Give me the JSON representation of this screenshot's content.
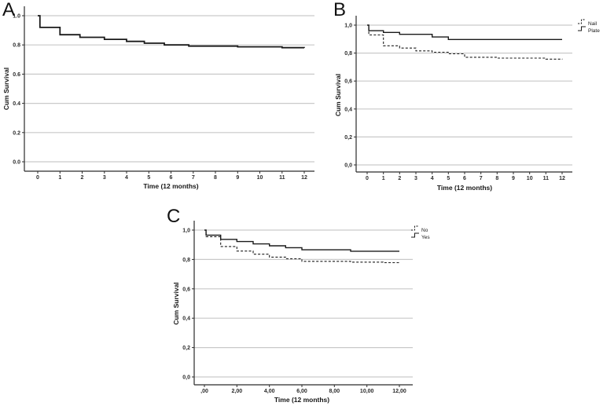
{
  "figure": {
    "background": "#ffffff"
  },
  "colors": {
    "curve": "#1a1a1a",
    "grid": "#c9c9c9",
    "axis": "#2b2b2b"
  },
  "chart_data": [
    {
      "type": "line",
      "subtype": "kaplan-meier-step",
      "panel_label": "A",
      "title": "",
      "xlabel": "Time (12 months)",
      "ylabel": "Cum Survival",
      "xlim": [
        0,
        12
      ],
      "ylim": [
        0,
        1
      ],
      "grid": true,
      "legend_position": null,
      "x_tick_values": [
        0,
        1,
        2,
        3,
        4,
        5,
        6,
        7,
        8,
        9,
        10,
        11,
        12
      ],
      "x_tick_labels": [
        "0",
        "1",
        "2",
        "3",
        "4",
        "5",
        "6",
        "7",
        "8",
        "9",
        "10",
        "11",
        "12"
      ],
      "y_tick_values": [
        1.0,
        0.8,
        0.6,
        0.4,
        0.2,
        0.0
      ],
      "y_tick_labels": [
        "1.0",
        "0.8",
        "0.6",
        "0.4",
        "0.2",
        "0.0"
      ],
      "series": [
        {
          "name": "",
          "style": "solid",
          "step_points": [
            [
              0,
              1.0
            ],
            [
              0.1,
              0.92
            ],
            [
              1,
              0.87
            ],
            [
              1.9,
              0.852
            ],
            [
              3,
              0.838
            ],
            [
              4,
              0.824
            ],
            [
              4.8,
              0.812
            ],
            [
              5.7,
              0.8
            ],
            [
              6.8,
              0.792
            ],
            [
              9,
              0.787
            ],
            [
              11,
              0.781
            ],
            [
              12,
              0.78
            ]
          ]
        }
      ]
    },
    {
      "type": "line",
      "subtype": "kaplan-meier-step",
      "panel_label": "B",
      "title": "",
      "xlabel": "Time (12 months)",
      "ylabel": "Cum Survival",
      "xlim": [
        0,
        12
      ],
      "ylim": [
        0,
        1
      ],
      "grid": true,
      "legend_position": "top-right",
      "x_tick_values": [
        0,
        1,
        2,
        3,
        4,
        5,
        6,
        7,
        8,
        9,
        10,
        11,
        12
      ],
      "x_tick_labels": [
        "0",
        "1",
        "2",
        "3",
        "4",
        "5",
        "6",
        "7",
        "8",
        "9",
        "10",
        "11",
        "12"
      ],
      "y_tick_values": [
        1.0,
        0.8,
        0.6,
        0.4,
        0.2,
        0.0
      ],
      "y_tick_labels": [
        "1,0",
        "0,8",
        "0,6",
        "0,4",
        "0,2",
        "0,0"
      ],
      "series": [
        {
          "name": "Nail",
          "style": "dashed",
          "step_points": [
            [
              0,
              1.0
            ],
            [
              0.1,
              0.93
            ],
            [
              1,
              0.852
            ],
            [
              2,
              0.836
            ],
            [
              3,
              0.816
            ],
            [
              4,
              0.806
            ],
            [
              5,
              0.795
            ],
            [
              6,
              0.77
            ],
            [
              8,
              0.764
            ],
            [
              11,
              0.757
            ],
            [
              12,
              0.755
            ]
          ]
        },
        {
          "name": "Plate",
          "style": "solid",
          "step_points": [
            [
              0,
              1.0
            ],
            [
              0.1,
              0.96
            ],
            [
              1,
              0.948
            ],
            [
              2,
              0.934
            ],
            [
              4,
              0.915
            ],
            [
              5,
              0.897
            ],
            [
              12,
              0.897
            ]
          ]
        }
      ]
    },
    {
      "type": "line",
      "subtype": "kaplan-meier-step",
      "panel_label": "C",
      "title": "",
      "xlabel": "Time (12 months)",
      "ylabel": "Cum Survival",
      "xlim": [
        0,
        12
      ],
      "ylim": [
        0,
        1
      ],
      "grid": true,
      "legend_position": "top-right",
      "x_tick_values": [
        0,
        2,
        4,
        6,
        8,
        10,
        12
      ],
      "x_tick_labels": [
        ",00",
        "2,00",
        "4,00",
        "6,00",
        "8,00",
        "10,00",
        "12,00"
      ],
      "y_tick_values": [
        1.0,
        0.8,
        0.6,
        0.4,
        0.2,
        0.0
      ],
      "y_tick_labels": [
        "1,0",
        "0,8",
        "0,6",
        "0,4",
        "0,2",
        "0,0"
      ],
      "series": [
        {
          "name": "No",
          "style": "dashed",
          "step_points": [
            [
              0,
              1.0
            ],
            [
              0.1,
              0.955
            ],
            [
              1,
              0.888
            ],
            [
              2,
              0.857
            ],
            [
              3,
              0.836
            ],
            [
              4,
              0.816
            ],
            [
              5,
              0.805
            ],
            [
              6,
              0.787
            ],
            [
              9,
              0.782
            ],
            [
              11,
              0.778
            ],
            [
              12,
              0.778
            ]
          ]
        },
        {
          "name": "Yes",
          "style": "solid",
          "step_points": [
            [
              0,
              1.0
            ],
            [
              0.1,
              0.966
            ],
            [
              1,
              0.937
            ],
            [
              2,
              0.922
            ],
            [
              3,
              0.906
            ],
            [
              4,
              0.893
            ],
            [
              5,
              0.88
            ],
            [
              6,
              0.866
            ],
            [
              9,
              0.856
            ],
            [
              12,
              0.856
            ]
          ]
        }
      ]
    }
  ]
}
